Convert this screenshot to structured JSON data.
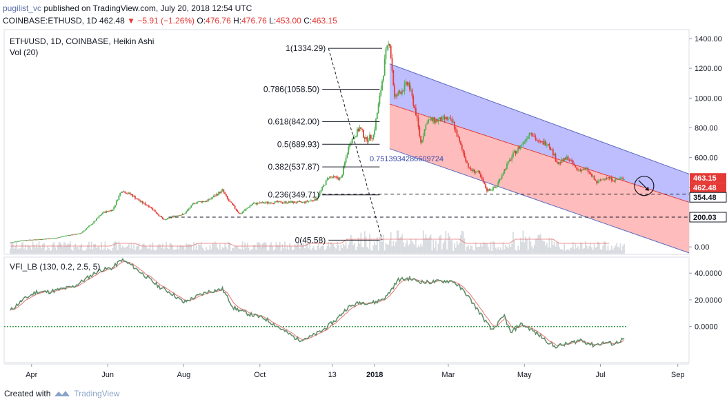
{
  "header": {
    "user": "pugilist_vc",
    "published": "published on TradingView.com, July 20, 2018 12:54 UTC",
    "symbol": "COINBASE:ETHUSD, 1D",
    "last": "462.48",
    "change": "▼ −5.91 (−1.26%)",
    "o_label": "O:",
    "o_val": "476.76",
    "h_label": "H:",
    "h_val": "476.76",
    "l_label": "L:",
    "l_val": "453.00",
    "c_label": "C:",
    "c_val": "463.15"
  },
  "footer": {
    "created_with": "Created with",
    "brand": "TradingView"
  },
  "colors": {
    "up": "#4caf50",
    "down": "#e53935",
    "channel_upper_fill": "#b3b3ff",
    "channel_lower_fill": "#ffb0b0",
    "vfi_line": "#5f8e6a",
    "vfi_signal": "#e57373",
    "zero_line": "#3d9a4a"
  },
  "chart_data": [
    {
      "type": "candlestick",
      "title": "ETH/USD, 1D, COINBASE, Heikin Ashi",
      "subtitle": "Vol (20)",
      "x_ticks": [
        "Apr",
        "Jun",
        "Aug",
        "Oct",
        "13",
        "2018",
        "Mar",
        "May",
        "Jul",
        "Sep"
      ],
      "y_ticks": [
        "1400.00",
        "1200.00",
        "1000.00",
        "800.00",
        "600.00",
        "400.00",
        "200.00",
        "0.00"
      ],
      "ylim": [
        -50,
        1460
      ],
      "price_labels": [
        {
          "text": "463.15",
          "value": 463.15,
          "color": "#e53935"
        },
        {
          "text": "462.48",
          "value": 462.48,
          "color": "#e53935"
        },
        {
          "text": "354.48",
          "value": 354.48,
          "color": "#131722"
        },
        {
          "text": "200.03",
          "value": 200.03,
          "color": "#131722"
        }
      ],
      "fib_levels": [
        {
          "label": "1(1334.29)",
          "value": 1334.29
        },
        {
          "label": "0.786(1058.50)",
          "value": 1058.5
        },
        {
          "label": "0.618(842.00)",
          "value": 842.0
        },
        {
          "label": "0.5(689.93)",
          "value": 689.93
        },
        {
          "label": "0.382(537.87)",
          "value": 537.87
        },
        {
          "label": "0.236(349.71)",
          "value": 349.71
        },
        {
          "label": "0(45.58)",
          "value": 45.58
        }
      ],
      "annotation": "0.7513934286609724",
      "price_path": [
        [
          "2017-03-15",
          30
        ],
        [
          "2017-03-25",
          45
        ],
        [
          "2017-04-05",
          50
        ],
        [
          "2017-04-20",
          60
        ],
        [
          "2017-05-01",
          80
        ],
        [
          "2017-05-10",
          90
        ],
        [
          "2017-05-20",
          160
        ],
        [
          "2017-05-28",
          230
        ],
        [
          "2017-06-05",
          250
        ],
        [
          "2017-06-12",
          380
        ],
        [
          "2017-06-20",
          350
        ],
        [
          "2017-06-28",
          300
        ],
        [
          "2017-07-05",
          270
        ],
        [
          "2017-07-16",
          180
        ],
        [
          "2017-07-25",
          210
        ],
        [
          "2017-08-01",
          220
        ],
        [
          "2017-08-10",
          300
        ],
        [
          "2017-08-20",
          310
        ],
        [
          "2017-09-01",
          380
        ],
        [
          "2017-09-05",
          320
        ],
        [
          "2017-09-15",
          220
        ],
        [
          "2017-09-25",
          290
        ],
        [
          "2017-10-10",
          300
        ],
        [
          "2017-10-25",
          300
        ],
        [
          "2017-11-05",
          300
        ],
        [
          "2017-11-15",
          320
        ],
        [
          "2017-11-25",
          470
        ],
        [
          "2017-12-05",
          460
        ],
        [
          "2017-12-12",
          700
        ],
        [
          "2017-12-20",
          800
        ],
        [
          "2017-12-25",
          720
        ],
        [
          "2017-12-31",
          750
        ],
        [
          "2018-01-05",
          1000
        ],
        [
          "2018-01-10",
          1300
        ],
        [
          "2018-01-13",
          1380
        ],
        [
          "2018-01-17",
          1000
        ],
        [
          "2018-01-22",
          1050
        ],
        [
          "2018-01-28",
          1100
        ],
        [
          "2018-02-03",
          900
        ],
        [
          "2018-02-07",
          700
        ],
        [
          "2018-02-12",
          850
        ],
        [
          "2018-02-20",
          850
        ],
        [
          "2018-02-28",
          860
        ],
        [
          "2018-03-05",
          830
        ],
        [
          "2018-03-10",
          700
        ],
        [
          "2018-03-18",
          520
        ],
        [
          "2018-03-25",
          500
        ],
        [
          "2018-04-01",
          380
        ],
        [
          "2018-04-08",
          400
        ],
        [
          "2018-04-15",
          520
        ],
        [
          "2018-04-22",
          620
        ],
        [
          "2018-04-30",
          700
        ],
        [
          "2018-05-06",
          780
        ],
        [
          "2018-05-12",
          700
        ],
        [
          "2018-05-20",
          700
        ],
        [
          "2018-05-28",
          560
        ],
        [
          "2018-06-05",
          600
        ],
        [
          "2018-06-12",
          520
        ],
        [
          "2018-06-20",
          520
        ],
        [
          "2018-06-28",
          430
        ],
        [
          "2018-07-05",
          470
        ],
        [
          "2018-07-12",
          450
        ],
        [
          "2018-07-20",
          463
        ]
      ]
    },
    {
      "type": "line",
      "title": "VFI_LB (130, 0.2, 2.5, 5)",
      "y_ticks": [
        "40.0000",
        "20.0000",
        "0.0000"
      ],
      "ylim": [
        -27,
        52
      ],
      "vfi_path": [
        [
          "2017-03-15",
          12
        ],
        [
          "2017-03-25",
          20
        ],
        [
          "2017-04-05",
          26
        ],
        [
          "2017-04-15",
          26
        ],
        [
          "2017-04-25",
          28
        ],
        [
          "2017-05-05",
          30
        ],
        [
          "2017-05-15",
          36
        ],
        [
          "2017-05-25",
          42
        ],
        [
          "2017-06-05",
          44
        ],
        [
          "2017-06-12",
          50
        ],
        [
          "2017-06-20",
          46
        ],
        [
          "2017-07-01",
          38
        ],
        [
          "2017-07-12",
          30
        ],
        [
          "2017-07-22",
          25
        ],
        [
          "2017-08-01",
          18
        ],
        [
          "2017-08-10",
          22
        ],
        [
          "2017-08-20",
          26
        ],
        [
          "2017-09-01",
          28
        ],
        [
          "2017-09-10",
          14
        ],
        [
          "2017-09-20",
          10
        ],
        [
          "2017-10-05",
          6
        ],
        [
          "2017-10-20",
          -3
        ],
        [
          "2017-11-01",
          -10
        ],
        [
          "2017-11-10",
          -8
        ],
        [
          "2017-11-20",
          -3
        ],
        [
          "2017-12-01",
          5
        ],
        [
          "2017-12-10",
          14
        ],
        [
          "2017-12-20",
          18
        ],
        [
          "2018-01-01",
          18
        ],
        [
          "2018-01-10",
          22
        ],
        [
          "2018-01-20",
          35
        ],
        [
          "2018-01-28",
          36
        ],
        [
          "2018-02-10",
          33
        ],
        [
          "2018-02-25",
          34
        ],
        [
          "2018-03-05",
          34
        ],
        [
          "2018-03-15",
          25
        ],
        [
          "2018-03-25",
          12
        ],
        [
          "2018-04-05",
          -3
        ],
        [
          "2018-04-15",
          8
        ],
        [
          "2018-04-20",
          -5
        ],
        [
          "2018-04-28",
          2
        ],
        [
          "2018-05-06",
          -2
        ],
        [
          "2018-05-15",
          -8
        ],
        [
          "2018-05-25",
          -15
        ],
        [
          "2018-06-05",
          -13
        ],
        [
          "2018-06-15",
          -10
        ],
        [
          "2018-06-25",
          -14
        ],
        [
          "2018-07-05",
          -12
        ],
        [
          "2018-07-12",
          -13
        ],
        [
          "2018-07-20",
          -9
        ]
      ]
    }
  ]
}
